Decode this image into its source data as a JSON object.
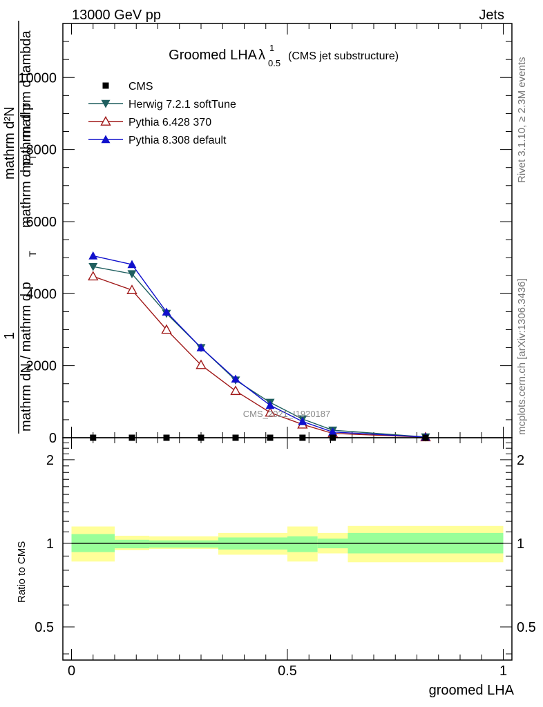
{
  "header": {
    "energy_label": "13000 GeV pp",
    "category_label": "Jets"
  },
  "side_labels": {
    "rivet": "Rivet 3.1.10, ≥ 2.3M events",
    "mcplots": "mcplots.cern.ch [arXiv:1306.3436]"
  },
  "watermark": "CMS_2021_I1920187",
  "chart_data": [
    {
      "type": "line",
      "title_main": "Groomed LHA",
      "title_symbol": "λ",
      "title_sup": "1",
      "title_sub": "0.5",
      "title_suffix": "(CMS jet substructure)",
      "ylabel_numerator": "mathrm d²N",
      "ylabel_numerator_sub": "1",
      "ylabel_denominator": "mathrm dN / mathrm d p",
      "ylabel_denominator_2": "mathrm d p",
      "ylabel_T": "T",
      "ylabel_overlay": "mathrm d p",
      "ylabel_overlay_tail": "mathrm d lambda",
      "ylabel_overlay_T": "T",
      "ylim": [
        0,
        11500
      ],
      "yticks": [
        0,
        2000,
        4000,
        6000,
        8000,
        10000
      ],
      "ytick_labels": [
        "0",
        "2000",
        "4000",
        "6000",
        "8000",
        "10000"
      ],
      "xlim": [
        -0.02,
        1.02
      ],
      "legend": {
        "placement": "top-left",
        "entries": [
          "CMS",
          "Herwig 7.2.1 softTune",
          "Pythia 6.428 370",
          "Pythia 8.308 default"
        ]
      },
      "series": [
        {
          "name": "CMS",
          "color": "#000000",
          "marker": "square",
          "x": [
            0.05,
            0.14,
            0.22,
            0.3,
            0.38,
            0.46,
            0.535,
            0.605,
            0.82
          ],
          "y": [
            0,
            0,
            0,
            0,
            0,
            0,
            0,
            0,
            0
          ]
        },
        {
          "name": "Herwig 7.2.1 softTune",
          "color": "#1f5f5f",
          "marker": "triangle-down",
          "x": [
            0.05,
            0.14,
            0.22,
            0.3,
            0.38,
            0.46,
            0.535,
            0.605,
            0.82
          ],
          "y": [
            4750,
            4550,
            3450,
            2500,
            1600,
            980,
            520,
            210,
            20
          ]
        },
        {
          "name": "Pythia 6.428 370",
          "color": "#a01818",
          "marker": "triangle-up-open",
          "x": [
            0.05,
            0.14,
            0.22,
            0.3,
            0.38,
            0.46,
            0.535,
            0.605,
            0.82
          ],
          "y": [
            4480,
            4100,
            3000,
            2020,
            1300,
            700,
            370,
            120,
            15
          ]
        },
        {
          "name": "Pythia 8.308 default",
          "color": "#1010cc",
          "marker": "triangle-up",
          "x": [
            0.05,
            0.14,
            0.22,
            0.3,
            0.38,
            0.46,
            0.535,
            0.605,
            0.82
          ],
          "y": [
            5050,
            4810,
            3490,
            2500,
            1630,
            900,
            450,
            160,
            18
          ]
        }
      ]
    },
    {
      "type": "area",
      "ylabel": "Ratio to CMS",
      "xlabel": "groomed LHA",
      "ylim": [
        0.38,
        2.4
      ],
      "log_y": true,
      "yticks": [
        0.5,
        1,
        2
      ],
      "ytick_labels": [
        "0.5",
        "1",
        "2"
      ],
      "xticks": [
        0,
        0.5,
        1
      ],
      "xtick_labels": [
        "0",
        "0.5",
        "1"
      ],
      "reference_line": 1,
      "bands": {
        "bins": [
          [
            0,
            0.1
          ],
          [
            0.1,
            0.18
          ],
          [
            0.18,
            0.26
          ],
          [
            0.26,
            0.34
          ],
          [
            0.34,
            0.5
          ],
          [
            0.5,
            0.57
          ],
          [
            0.57,
            0.64
          ],
          [
            0.64,
            1.0
          ]
        ],
        "inner": [
          [
            0.93,
            1.08
          ],
          [
            0.96,
            1.03
          ],
          [
            0.965,
            1.025
          ],
          [
            0.965,
            1.025
          ],
          [
            0.95,
            1.05
          ],
          [
            0.93,
            1.06
          ],
          [
            0.96,
            1.04
          ],
          [
            0.92,
            1.09
          ]
        ],
        "outer": [
          [
            0.86,
            1.15
          ],
          [
            0.945,
            1.065
          ],
          [
            0.955,
            1.06
          ],
          [
            0.955,
            1.06
          ],
          [
            0.91,
            1.09
          ],
          [
            0.86,
            1.15
          ],
          [
            0.92,
            1.09
          ],
          [
            0.855,
            1.155
          ]
        ],
        "inner_color": "#99ff99",
        "outer_color": "#ffff99"
      }
    }
  ]
}
